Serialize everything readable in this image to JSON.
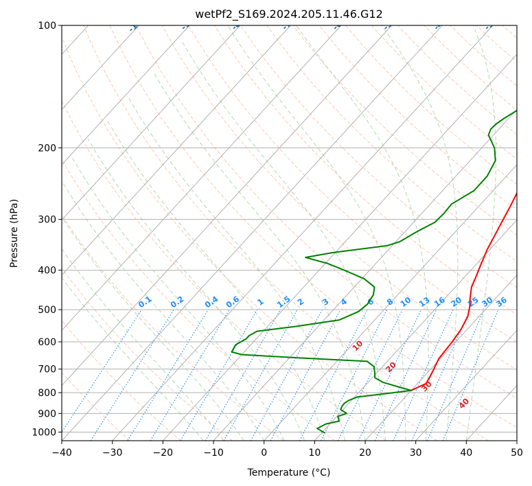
{
  "chart_data": {
    "type": "line",
    "title": "wetPf2_S169.2024.205.11.46.G12",
    "xlabel": "Temperature (°C)",
    "ylabel": "Pressure (hPa)",
    "xlim": [
      -40,
      50
    ],
    "ylim": [
      1050,
      100
    ],
    "y_scale": "log",
    "grid": true,
    "x_ticks": [
      -40,
      -30,
      -20,
      -10,
      0,
      10,
      20,
      30,
      40,
      50
    ],
    "x_tick_labels": [
      "−40",
      "−30",
      "−20",
      "−10",
      "0",
      "10",
      "20",
      "30",
      "40",
      "50"
    ],
    "y_ticks": [
      1000,
      900,
      800,
      700,
      600,
      500,
      400,
      300,
      200,
      100
    ],
    "y_tick_labels": [
      "1000",
      "900",
      "800",
      "700",
      "600",
      "500",
      "400",
      "300",
      "200",
      "100"
    ],
    "series": [
      {
        "color": "#ff0000",
        "points": [
          [
            20.0,
            790
          ],
          [
            20.8,
            775
          ],
          [
            21.7,
            760
          ],
          [
            21.2,
            730
          ],
          [
            20.6,
            700
          ],
          [
            19.7,
            660
          ],
          [
            19.5,
            630
          ],
          [
            19.3,
            600
          ],
          [
            18.8,
            560
          ],
          [
            17.8,
            520
          ],
          [
            16.3,
            490
          ],
          [
            15.0,
            470
          ],
          [
            13.2,
            440
          ],
          [
            12.2,
            415
          ],
          [
            11.3,
            395
          ],
          [
            10.4,
            375
          ],
          [
            9.5,
            356
          ],
          [
            8.5,
            330
          ],
          [
            7.2,
            300
          ],
          [
            6.3,
            280
          ],
          [
            5.5,
            265
          ],
          [
            4.4,
            245
          ],
          [
            3.0,
            220
          ],
          [
            2.3,
            205
          ],
          [
            3.5,
            197
          ],
          [
            5.4,
            188
          ],
          [
            8.5,
            175
          ],
          [
            11.2,
            165
          ],
          [
            13.3,
            155
          ],
          [
            15.8,
            145
          ],
          [
            17.3,
            138
          ],
          [
            18.3,
            132
          ],
          [
            19.2,
            127
          ],
          [
            20.3,
            122
          ],
          [
            21.6,
            117
          ],
          [
            23.6,
            112
          ],
          [
            26.0,
            107
          ],
          [
            27.5,
            103
          ],
          [
            28.0,
            101.5
          ],
          [
            28.2,
            100
          ]
        ]
      },
      {
        "color": "#008000",
        "points": [
          [
            10.6,
            1005
          ],
          [
            8.3,
            980
          ],
          [
            9.2,
            955
          ],
          [
            11.3,
            940
          ],
          [
            10.2,
            915
          ],
          [
            11.4,
            900
          ],
          [
            9.5,
            880
          ],
          [
            9.2,
            865
          ],
          [
            9.1,
            850
          ],
          [
            9.5,
            835
          ],
          [
            10.5,
            820
          ],
          [
            15.4,
            805
          ],
          [
            20.0,
            790
          ],
          [
            17.0,
            775
          ],
          [
            13.0,
            755
          ],
          [
            10.5,
            735
          ],
          [
            9.6,
            715
          ],
          [
            8.3,
            690
          ],
          [
            6.0,
            670
          ],
          [
            -10.0,
            655
          ],
          [
            -20.0,
            645
          ],
          [
            -22.5,
            635
          ],
          [
            -23.0,
            610
          ],
          [
            -22.0,
            590
          ],
          [
            -22.0,
            580
          ],
          [
            -21.2,
            565
          ],
          [
            -14.5,
            550
          ],
          [
            -7.0,
            530
          ],
          [
            -4.7,
            505
          ],
          [
            -4.3,
            485
          ],
          [
            -4.8,
            460
          ],
          [
            -6.0,
            440
          ],
          [
            -9.5,
            420
          ],
          [
            -15.0,
            400
          ],
          [
            -19.5,
            385
          ],
          [
            -25.0,
            372
          ],
          [
            -20.5,
            362
          ],
          [
            -11.0,
            348
          ],
          [
            -9.2,
            340
          ],
          [
            -7.5,
            320
          ],
          [
            -5.8,
            305
          ],
          [
            -5.6,
            290
          ],
          [
            -5.8,
            275
          ],
          [
            -3.8,
            255
          ],
          [
            -3.8,
            235
          ],
          [
            -5.0,
            215
          ],
          [
            -7.5,
            200
          ],
          [
            -11.0,
            186
          ],
          [
            -11.6,
            180
          ],
          [
            -11.5,
            175
          ],
          [
            -11.0,
            170
          ],
          [
            -10.0,
            163
          ],
          [
            -9.0,
            158
          ],
          [
            -7.0,
            150
          ],
          [
            -6.0,
            145
          ],
          [
            -4.8,
            135
          ],
          [
            -3.5,
            125
          ],
          [
            -2.5,
            115
          ],
          [
            -1.0,
            107
          ],
          [
            0.5,
            100
          ]
        ]
      }
    ],
    "dry_adiabat_labels": [
      "-100",
      "-90",
      "-80",
      "-70",
      "-60",
      "-50",
      "-40",
      "-30",
      "-20",
      "-10",
      "0"
    ],
    "mixing_ratio_labels": [
      "0.1",
      "0.2",
      "0.4",
      "0.6",
      "1",
      "1.5",
      "2",
      "3",
      "4",
      "6",
      "8",
      "10",
      "13",
      "16",
      "20",
      "25",
      "30",
      "36"
    ],
    "moist_adiabat_labels": [
      "10",
      "20",
      "30",
      "40"
    ],
    "colors": {
      "temperature": "#ff0000",
      "dewpoint": "#008000",
      "grid": "#b0b0b0",
      "dry_adiabat": "#ffa07a",
      "moist_adiabat": "#90c890",
      "mixing_ratio": "#1e90ff",
      "dry_label": "#1f77b4",
      "moist_label": "#d62728"
    }
  }
}
